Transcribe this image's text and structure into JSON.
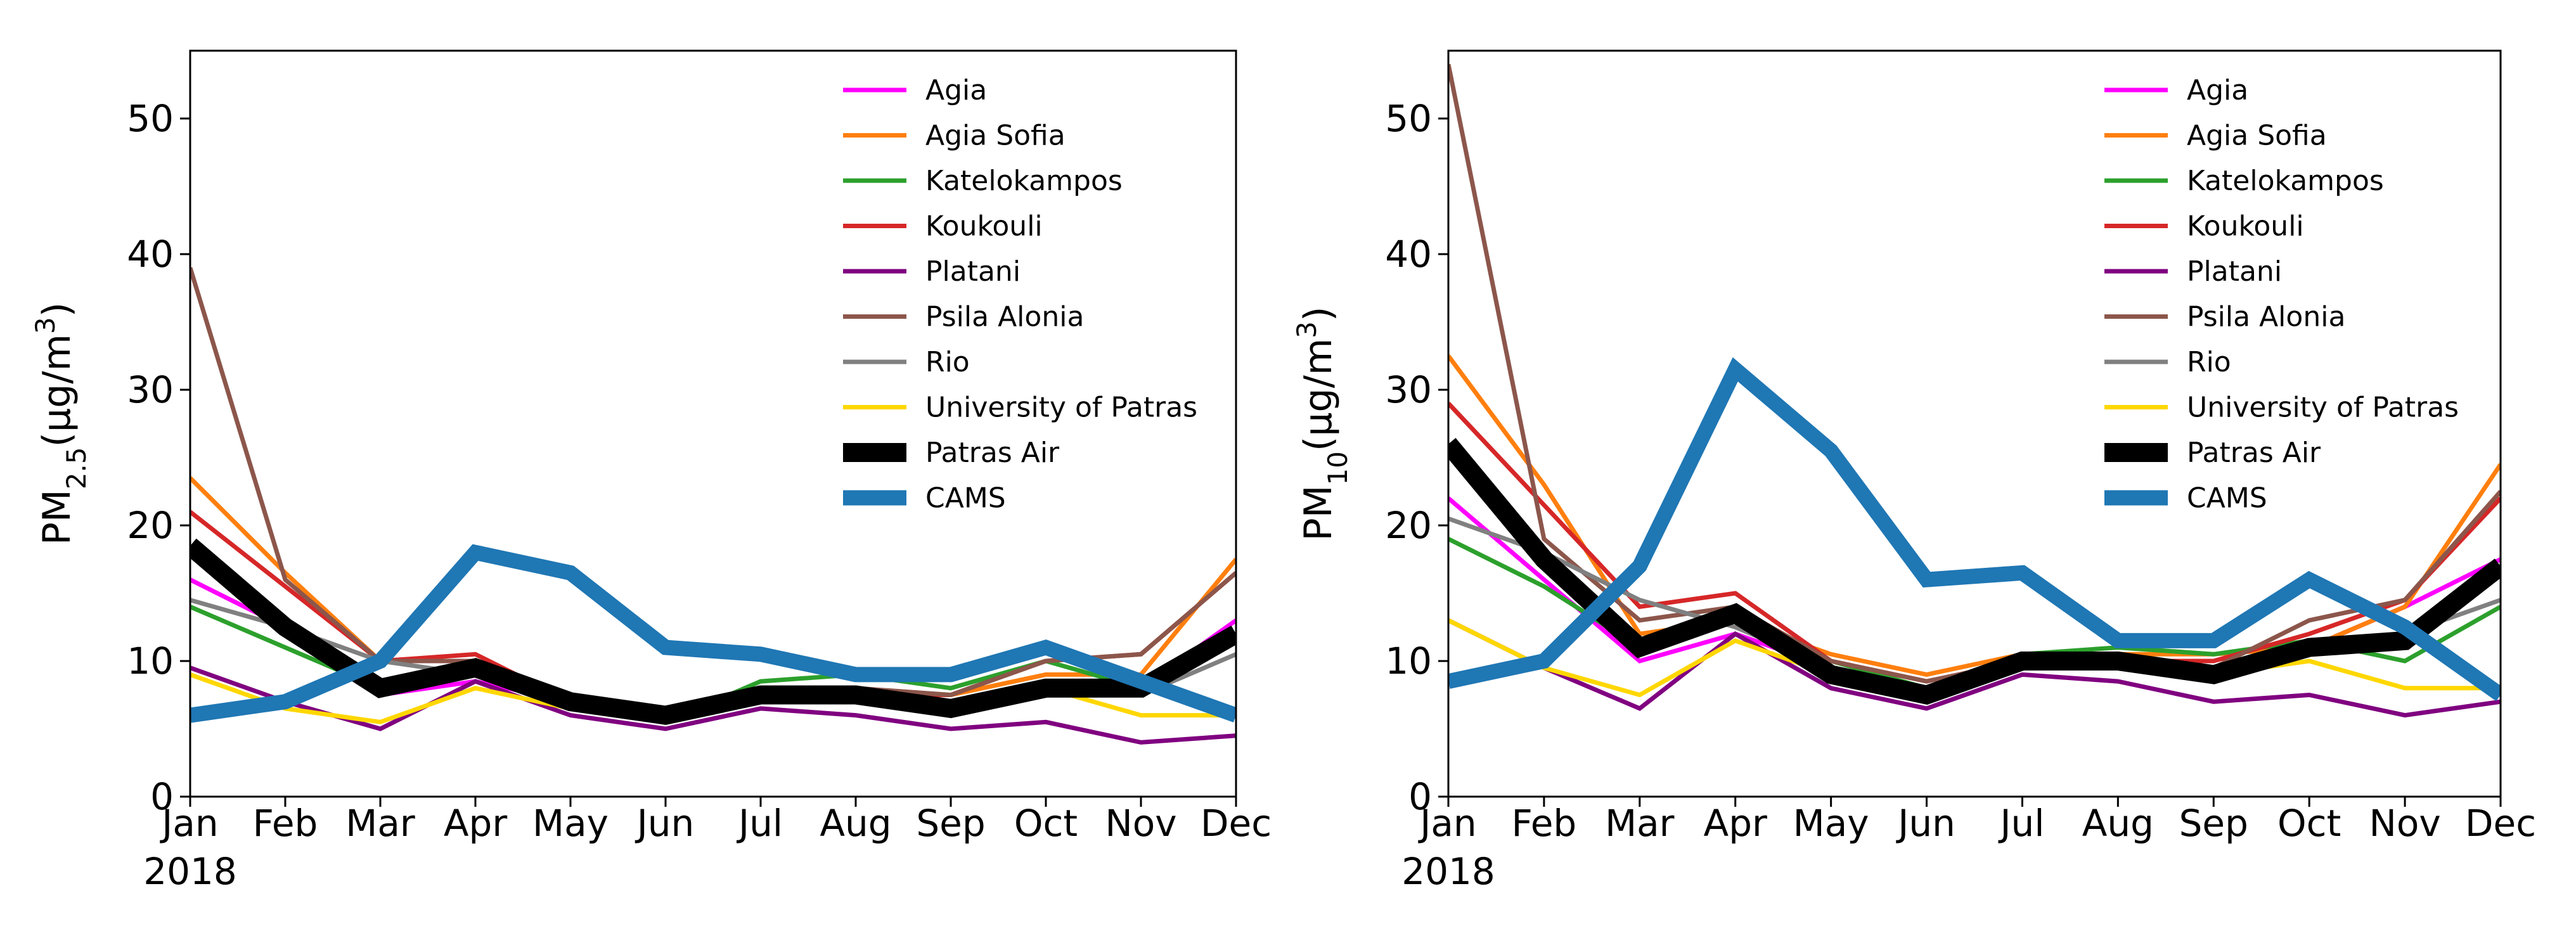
{
  "chart_data": [
    {
      "type": "line",
      "title": "",
      "ylabel_main": "PM",
      "ylabel_sub": "2.5",
      "ylabel_tail": "(μg/m",
      "ylabel_sup": "3",
      "ylabel_close": ")",
      "xlabel": "",
      "year_label": "2018",
      "categories": [
        "Jan",
        "Feb",
        "Mar",
        "Apr",
        "May",
        "Jun",
        "Jul",
        "Aug",
        "Sep",
        "Oct",
        "Nov",
        "Dec"
      ],
      "ylim": [
        0,
        55
      ],
      "yticks": [
        0,
        10,
        20,
        30,
        40,
        50
      ],
      "series": [
        {
          "name": "Agia",
          "color": "#ff00ff",
          "width": "thin",
          "values": [
            16,
            12.5,
            7.5,
            8.5,
            7,
            6,
            7,
            7.5,
            7,
            8.5,
            8,
            13
          ]
        },
        {
          "name": "Agia Sofia",
          "color": "#ff7f0e",
          "width": "thin",
          "values": [
            23.5,
            16.5,
            10,
            10,
            7.5,
            6.5,
            7.5,
            7.5,
            7.5,
            9,
            9,
            17.5
          ]
        },
        {
          "name": "Katelokampos",
          "color": "#2ca02c",
          "width": "thin",
          "values": [
            14,
            11,
            8,
            9.5,
            6.5,
            5.5,
            8.5,
            9,
            8,
            10,
            8,
            12
          ]
        },
        {
          "name": "Koukouli",
          "color": "#d62728",
          "width": "thin",
          "values": [
            21,
            15.5,
            10,
            10.5,
            7,
            6,
            7.5,
            7.5,
            7.5,
            10,
            10.5,
            16.5
          ]
        },
        {
          "name": "Platani",
          "color": "#800080",
          "width": "thin",
          "values": [
            9.5,
            7,
            5,
            8.5,
            6,
            5,
            6.5,
            6,
            5,
            5.5,
            4,
            4.5
          ]
        },
        {
          "name": "Psila Alonia",
          "color": "#8c564b",
          "width": "thin",
          "values": [
            39,
            16,
            10,
            10,
            7.5,
            6.5,
            7.5,
            8,
            7.5,
            10,
            10.5,
            16.5
          ]
        },
        {
          "name": "Rio",
          "color": "#808080",
          "width": "thin",
          "values": [
            14.5,
            12.5,
            10,
            9,
            7,
            6,
            7.5,
            7.5,
            7,
            8,
            7.5,
            10.5
          ]
        },
        {
          "name": "University of Patras",
          "color": "#ffd700",
          "width": "thin",
          "values": [
            9,
            6.5,
            5.5,
            8,
            6.5,
            5.5,
            7,
            7,
            6.5,
            8,
            6,
            6
          ]
        },
        {
          "name": "Patras Air",
          "color": "#000000",
          "width": "thick",
          "values": [
            18.5,
            12.5,
            8,
            9.5,
            7,
            6,
            7.5,
            7.5,
            6.5,
            8,
            8,
            12
          ]
        },
        {
          "name": "CAMS",
          "color": "#1f77b4",
          "width": "medium",
          "values": [
            6,
            7,
            10,
            18,
            16.5,
            11,
            10.5,
            9,
            9,
            11,
            8.5,
            6
          ]
        }
      ]
    },
    {
      "type": "line",
      "title": "",
      "ylabel_main": "PM",
      "ylabel_sub": "10",
      "ylabel_tail": "(μg/m",
      "ylabel_sup": "3",
      "ylabel_close": ")",
      "xlabel": "",
      "year_label": "2018",
      "categories": [
        "Jan",
        "Feb",
        "Mar",
        "Apr",
        "May",
        "Jun",
        "Jul",
        "Aug",
        "Sep",
        "Oct",
        "Nov",
        "Dec"
      ],
      "ylim": [
        0,
        55
      ],
      "yticks": [
        0,
        10,
        20,
        30,
        40,
        50
      ],
      "series": [
        {
          "name": "Agia",
          "color": "#ff00ff",
          "width": "thin",
          "values": [
            22,
            16,
            10,
            12,
            9.5,
            7.5,
            10,
            10,
            9.5,
            11,
            14,
            17.5
          ]
        },
        {
          "name": "Agia Sofia",
          "color": "#ff7f0e",
          "width": "thin",
          "values": [
            32.5,
            23,
            12,
            13,
            10.5,
            9,
            10.5,
            10.5,
            10.5,
            11,
            14,
            24.5
          ]
        },
        {
          "name": "Katelokampos",
          "color": "#2ca02c",
          "width": "thin",
          "values": [
            19,
            15.5,
            11,
            13,
            10,
            8,
            10.5,
            11,
            10.5,
            11.5,
            10,
            14
          ]
        },
        {
          "name": "Koukouli",
          "color": "#d62728",
          "width": "thin",
          "values": [
            29,
            21.5,
            14,
            15,
            10,
            8.5,
            10,
            10,
            10,
            12,
            14.5,
            22
          ]
        },
        {
          "name": "Platani",
          "color": "#800080",
          "width": "thin",
          "values": [
            13,
            9.5,
            6.5,
            12,
            8,
            6.5,
            9,
            8.5,
            7,
            7.5,
            6,
            7
          ]
        },
        {
          "name": "Psila Alonia",
          "color": "#8c564b",
          "width": "thin",
          "values": [
            54,
            19,
            13,
            14,
            10,
            8.5,
            10,
            10,
            9.5,
            13,
            14.5,
            22.5
          ]
        },
        {
          "name": "Rio",
          "color": "#808080",
          "width": "thin",
          "values": [
            20.5,
            18,
            14.5,
            12.5,
            9.5,
            8,
            10,
            10,
            9.5,
            11,
            12,
            14.5
          ]
        },
        {
          "name": "University of Patras",
          "color": "#ffd700",
          "width": "thin",
          "values": [
            13,
            9.5,
            7.5,
            11.5,
            9,
            8,
            9.5,
            9.5,
            9,
            10,
            8,
            8
          ]
        },
        {
          "name": "Patras Air",
          "color": "#000000",
          "width": "thick",
          "values": [
            26,
            17.5,
            11,
            13.5,
            9,
            7.5,
            10,
            10,
            9,
            11,
            11.5,
            17
          ]
        },
        {
          "name": "CAMS",
          "color": "#1f77b4",
          "width": "medium",
          "values": [
            8.5,
            10,
            17,
            31.5,
            25.5,
            16,
            16.5,
            11.5,
            11.5,
            16,
            12.5,
            7.5
          ]
        }
      ]
    }
  ]
}
